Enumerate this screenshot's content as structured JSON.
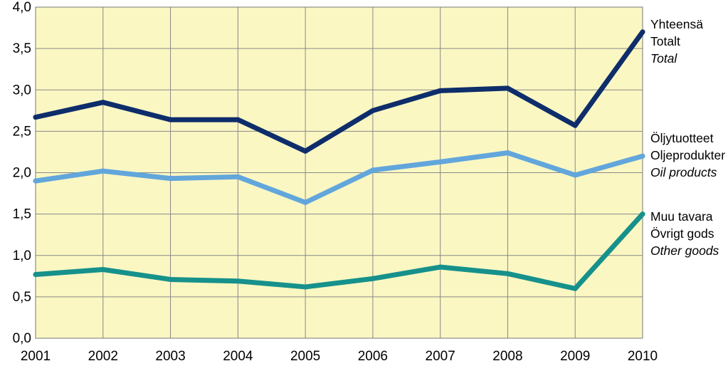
{
  "chart_data": {
    "type": "line",
    "x": [
      2001,
      2002,
      2003,
      2004,
      2005,
      2006,
      2007,
      2008,
      2009,
      2010
    ],
    "x_tick_labels": [
      "2001",
      "2002",
      "2003",
      "2004",
      "2005",
      "2006",
      "2007",
      "2008",
      "2009",
      "2010"
    ],
    "ylim": [
      0,
      4
    ],
    "y_ticks": [
      0,
      0.5,
      1,
      1.5,
      2,
      2.5,
      3,
      3.5,
      4
    ],
    "y_tick_labels": [
      "0,0",
      "0,5",
      "1,0",
      "1,5",
      "2,0",
      "2,5",
      "3,0",
      "3,5",
      "4,0"
    ],
    "grid": true,
    "plot_background": "#FBF7C3",
    "grid_color": "#888888",
    "legend_placement": "right, at line ends",
    "series": [
      {
        "key": "total",
        "labels": [
          "Yhteensä",
          "Totalt",
          "Total"
        ],
        "color": "#0E2D6B",
        "values": [
          2.67,
          2.85,
          2.64,
          2.64,
          2.26,
          2.75,
          2.99,
          3.02,
          2.57,
          3.7
        ]
      },
      {
        "key": "oil",
        "labels": [
          "Öljytuotteet",
          "Oljeprodukter",
          "Oil products"
        ],
        "color": "#62A6DC",
        "values": [
          1.9,
          2.02,
          1.93,
          1.95,
          1.64,
          2.03,
          2.13,
          2.24,
          1.97,
          2.2
        ]
      },
      {
        "key": "other",
        "labels": [
          "Muu tavara",
          "Övrigt gods",
          "Other goods"
        ],
        "color": "#16918B",
        "values": [
          0.77,
          0.83,
          0.71,
          0.69,
          0.62,
          0.72,
          0.86,
          0.78,
          0.6,
          1.5
        ]
      }
    ]
  }
}
